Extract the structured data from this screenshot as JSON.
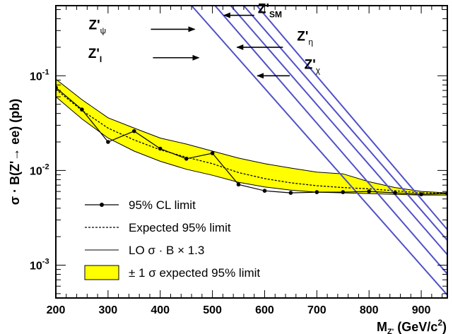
{
  "chart_data": {
    "type": "line",
    "title": "",
    "xlabel": {
      "main": "M",
      "sub": "Z'",
      "units_pre": "(GeV/c",
      "units_sup": "2",
      "units_post": ")"
    },
    "ylabel": {
      "pre": "σ · B(Z'",
      "arrow": "→",
      "post": " ee) (pb)"
    },
    "x_range": [
      200,
      950
    ],
    "y_range": [
      0.00045,
      0.55
    ],
    "y_scale": "log",
    "x_ticks": [
      200,
      300,
      400,
      500,
      600,
      700,
      800,
      900
    ],
    "x_tick_labels": [
      "200",
      "300",
      "400",
      "500",
      "600",
      "700",
      "800",
      "900"
    ],
    "y_tick_labels": [
      {
        "value": 0.1,
        "base": "10",
        "exp": "-1"
      },
      {
        "value": 0.01,
        "base": "10",
        "exp": "-2"
      },
      {
        "value": 0.001,
        "base": "10",
        "exp": "-3"
      }
    ],
    "observed": {
      "x": [
        200,
        250,
        300,
        350,
        400,
        450,
        500,
        550,
        600,
        650,
        700,
        750,
        800,
        850,
        900,
        950
      ],
      "y": [
        0.075,
        0.044,
        0.02,
        0.026,
        0.017,
        0.0133,
        0.0152,
        0.0071,
        0.0061,
        0.0058,
        0.0059,
        0.0059,
        0.006,
        0.0058,
        0.0056,
        0.0057
      ]
    },
    "expected": {
      "x": [
        200,
        250,
        300,
        350,
        400,
        450,
        500,
        550,
        600,
        650,
        700,
        750,
        800,
        850,
        900,
        950
      ],
      "y": [
        0.072,
        0.043,
        0.028,
        0.021,
        0.0165,
        0.0138,
        0.0118,
        0.0095,
        0.0082,
        0.0074,
        0.0069,
        0.0066,
        0.0064,
        0.0061,
        0.0058,
        0.0057
      ]
    },
    "band": {
      "x": [
        200,
        250,
        300,
        350,
        400,
        450,
        500,
        550,
        600,
        650,
        700,
        750,
        800,
        850,
        900,
        950
      ],
      "upper": [
        0.092,
        0.056,
        0.036,
        0.028,
        0.022,
        0.019,
        0.016,
        0.0135,
        0.0118,
        0.0106,
        0.0096,
        0.0092,
        0.0076,
        0.0066,
        0.006,
        0.0058
      ],
      "lower": [
        0.06,
        0.035,
        0.022,
        0.016,
        0.0125,
        0.0103,
        0.0089,
        0.0075,
        0.0067,
        0.0062,
        0.0059,
        0.0058,
        0.0057,
        0.0056,
        0.0055,
        0.0055
      ]
    },
    "theory_curves": [
      {
        "x": [
          460,
          955
        ],
        "y": [
          0.55,
          0.00045
        ]
      },
      {
        "x": [
          505,
          955
        ],
        "y": [
          0.55,
          0.00075
        ]
      },
      {
        "x": [
          535,
          955
        ],
        "y": [
          0.55,
          0.0012
        ]
      },
      {
        "x": [
          560,
          955
        ],
        "y": [
          0.55,
          0.0017
        ]
      },
      {
        "x": [
          585,
          955
        ],
        "y": [
          0.55,
          0.0022
        ]
      }
    ],
    "annotations": [
      {
        "base": "Z'",
        "sub": "SM",
        "sub_style": "bold",
        "label_at": [
          587,
          0.46
        ],
        "arrow_from": [
          580,
          0.435
        ],
        "arrow_to": [
          522,
          0.435
        ]
      },
      {
        "base": "Z'",
        "sub": "ψ",
        "sub_style": "normal",
        "label_at": [
          263,
          0.31
        ],
        "arrow_from": [
          382,
          0.31
        ],
        "arrow_to": [
          466,
          0.31
        ]
      },
      {
        "base": "Z'",
        "sub": "η",
        "sub_style": "normal",
        "label_at": [
          662,
          0.235
        ],
        "arrow_from": [
          635,
          0.2
        ],
        "arrow_to": [
          547,
          0.2
        ]
      },
      {
        "base": "Z'",
        "sub": "I",
        "sub_style": "bold",
        "label_at": [
          262,
          0.155
        ],
        "arrow_from": [
          386,
          0.155
        ],
        "arrow_to": [
          474,
          0.155
        ]
      },
      {
        "base": "Z'",
        "sub": "χ",
        "sub_style": "normal",
        "label_at": [
          676,
          0.118
        ],
        "arrow_from": [
          648,
          0.1
        ],
        "arrow_to": [
          586,
          0.1
        ]
      }
    ],
    "legend": {
      "placement": "bottom-left",
      "entries": [
        {
          "label": "95% CL limit",
          "style": "line-marker"
        },
        {
          "label": "Expected 95% limit",
          "style": "dashed"
        },
        {
          "label": "LO σ · B × 1.3",
          "style": "thin-line"
        },
        {
          "label": "± 1 σ expected 95% limit",
          "style": "yellow-box"
        }
      ]
    },
    "colors": {
      "band_fill": "#ffff00",
      "band_edge": "#000000",
      "observed": "#000000",
      "expected": "#000000",
      "theory": "#5050c8",
      "frame": "#000000"
    },
    "grid": false
  }
}
